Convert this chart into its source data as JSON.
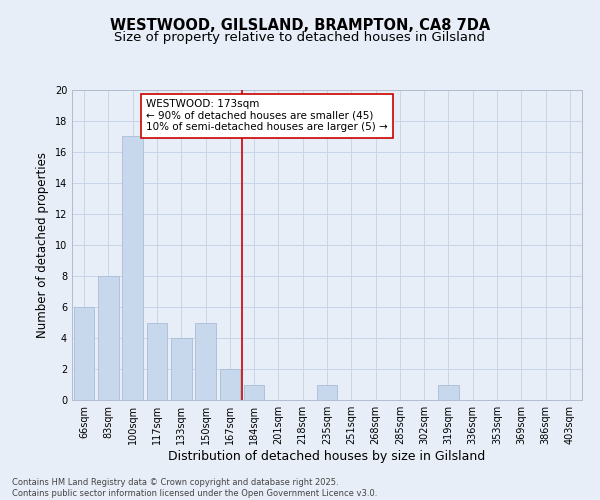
{
  "title": "WESTWOOD, GILSLAND, BRAMPTON, CA8 7DA",
  "subtitle": "Size of property relative to detached houses in Gilsland",
  "xlabel": "Distribution of detached houses by size in Gilsland",
  "ylabel": "Number of detached properties",
  "categories": [
    "66sqm",
    "83sqm",
    "100sqm",
    "117sqm",
    "133sqm",
    "150sqm",
    "167sqm",
    "184sqm",
    "201sqm",
    "218sqm",
    "235sqm",
    "251sqm",
    "268sqm",
    "285sqm",
    "302sqm",
    "319sqm",
    "336sqm",
    "353sqm",
    "369sqm",
    "386sqm",
    "403sqm"
  ],
  "values": [
    6,
    8,
    17,
    5,
    4,
    5,
    2,
    1,
    0,
    0,
    1,
    0,
    0,
    0,
    0,
    1,
    0,
    0,
    0,
    0,
    0
  ],
  "bar_color": "#c8d8ec",
  "bar_edge_color": "#aabdd8",
  "vline_color": "#cc0000",
  "annotation_text": "WESTWOOD: 173sqm\n← 90% of detached houses are smaller (45)\n10% of semi-detached houses are larger (5) →",
  "annotation_box_color": "#ffffff",
  "annotation_box_edge": "#cc0000",
  "ylim": [
    0,
    20
  ],
  "yticks": [
    0,
    2,
    4,
    6,
    8,
    10,
    12,
    14,
    16,
    18,
    20
  ],
  "grid_color": "#c8d4e8",
  "background_color": "#e8eef8",
  "footer_line1": "Contains HM Land Registry data © Crown copyright and database right 2025.",
  "footer_line2": "Contains public sector information licensed under the Open Government Licence v3.0.",
  "title_fontsize": 10.5,
  "subtitle_fontsize": 9.5,
  "tick_fontsize": 7,
  "ylabel_fontsize": 8.5,
  "xlabel_fontsize": 9,
  "annotation_fontsize": 7.5,
  "footer_fontsize": 6
}
